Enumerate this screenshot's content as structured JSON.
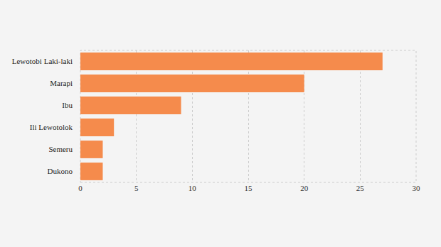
{
  "chart_data": {
    "type": "bar",
    "orientation": "horizontal",
    "categories": [
      "Lewotobi Laki-laki",
      "Marapi",
      "Ibu",
      "Ili Lewotolok",
      "Semeru",
      "Dukono"
    ],
    "values": [
      27,
      20,
      9,
      3,
      2,
      2
    ],
    "color": "#f58b4c",
    "xlim": [
      0,
      30
    ],
    "xticks": [
      0,
      5,
      10,
      15,
      20,
      25,
      30
    ],
    "grid": true
  }
}
